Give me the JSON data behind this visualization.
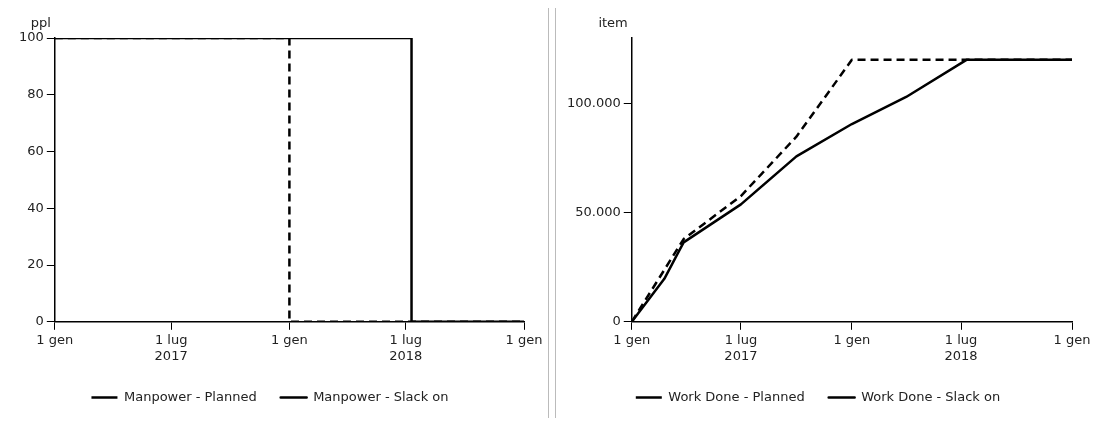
{
  "chart_data": [
    {
      "type": "line",
      "ylabel": "ppl",
      "xlim": [
        "2017-01-01",
        "2019-01-01"
      ],
      "xticks": [
        {
          "value": "2017-01-01",
          "label": "1 gen"
        },
        {
          "value": "2017-07-01",
          "label": "1 lug\n2017"
        },
        {
          "value": "2018-01-01",
          "label": "1 gen"
        },
        {
          "value": "2018-07-01",
          "label": "1 lug\n2018"
        },
        {
          "value": "2019-01-01",
          "label": "1 gen"
        }
      ],
      "ylim": [
        0,
        100
      ],
      "yticks": [
        0,
        20,
        40,
        60,
        80,
        100
      ],
      "grid": false,
      "legend": "bottom",
      "series": [
        {
          "name": "Manpower - Planned",
          "color": "#000000",
          "line_style": "dashed",
          "x": [
            "2017-01-01",
            "2018-01-01",
            "2018-01-01",
            "2019-01-01"
          ],
          "values": [
            100,
            100,
            0,
            0
          ]
        },
        {
          "name": "Manpower - Slack on",
          "color": "#000000",
          "line_style": "solid",
          "x": [
            "2017-01-01",
            "2018-07-10",
            "2018-07-10",
            "2019-01-01"
          ],
          "values": [
            100,
            100,
            0,
            0
          ]
        }
      ]
    },
    {
      "type": "line",
      "ylabel": "item",
      "xlim": [
        "2017-01-01",
        "2019-01-01"
      ],
      "xticks": [
        {
          "value": "2017-01-01",
          "label": "1 gen"
        },
        {
          "value": "2017-07-01",
          "label": "1 lug\n2017"
        },
        {
          "value": "2018-01-01",
          "label": "1 gen"
        },
        {
          "value": "2018-07-01",
          "label": "1 lug\n2018"
        },
        {
          "value": "2019-01-01",
          "label": "1 gen"
        }
      ],
      "ylim": [
        0,
        130000
      ],
      "yticks": [
        {
          "value": 0,
          "label": "0"
        },
        {
          "value": 50000,
          "label": "50.000"
        },
        {
          "value": 100000,
          "label": "100.000"
        }
      ],
      "grid": false,
      "legend": "bottom",
      "series": [
        {
          "name": "Work Done - Planned",
          "color": "#000000",
          "line_style": "dashed",
          "x": [
            "2017-01-01",
            "2017-03-28",
            "2017-07-01",
            "2017-10-01",
            "2018-01-01",
            "2019-01-01"
          ],
          "values": [
            0,
            37900,
            57600,
            84800,
            120000,
            120000
          ]
        },
        {
          "name": "Work Done - Slack on",
          "color": "#000000",
          "line_style": "solid",
          "x": [
            "2017-01-01",
            "2017-02-24",
            "2017-03-28",
            "2017-07-01",
            "2017-10-01",
            "2018-01-01",
            "2018-04-01",
            "2018-07-10",
            "2019-01-01"
          ],
          "values": [
            0,
            19700,
            36400,
            53800,
            75800,
            90600,
            103000,
            120000,
            120000
          ]
        }
      ]
    }
  ]
}
